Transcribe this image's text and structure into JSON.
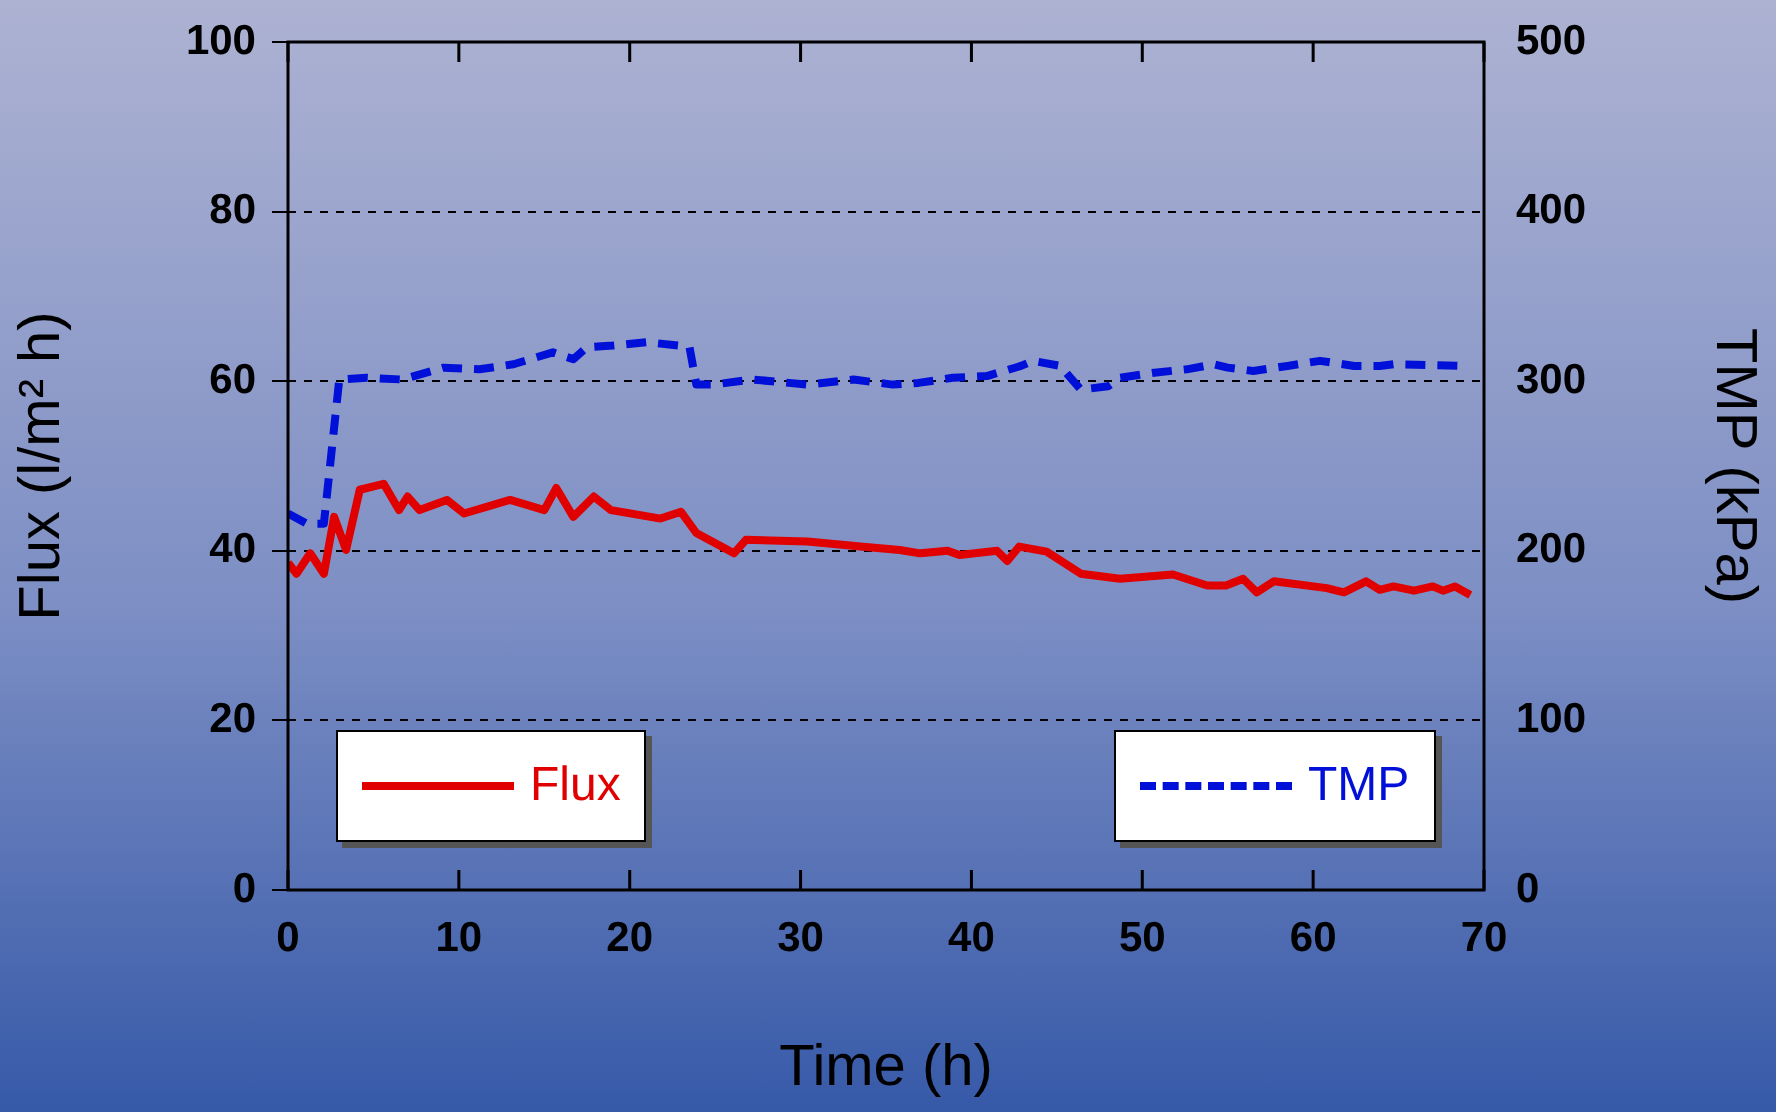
{
  "chart_data": {
    "type": "line",
    "xlabel": "Time (h)",
    "ylabel": "Flux (l/m² h)",
    "y2label": "TMP (kPa)",
    "xlim": [
      0,
      70
    ],
    "xticks": [
      0,
      10,
      20,
      30,
      40,
      50,
      60,
      70
    ],
    "ylim": [
      0,
      100
    ],
    "yticks": [
      0,
      20,
      40,
      60,
      80,
      100
    ],
    "y2lim": [
      0,
      500
    ],
    "y2ticks": [
      0,
      100,
      200,
      300,
      400,
      500
    ],
    "grid": "y",
    "legend": "bottom",
    "marker": "none",
    "series": [
      {
        "name": "Flux",
        "color": "#e00000",
        "line_style": "solid",
        "x": [
          0,
          0.5,
          1.3,
          2.1,
          2.7,
          3.4,
          4.2,
          5.6,
          6.5,
          7.0,
          7.7,
          9.3,
          10.3,
          13.0,
          15.0,
          15.7,
          16.7,
          17.9,
          18.9,
          21.8,
          23.0,
          23.9,
          26.1,
          26.8,
          30.4,
          33.5,
          35.8,
          37.0,
          38.6,
          39.3,
          41.5,
          42.1,
          42.8,
          44.4,
          46.4,
          48.7,
          51.8,
          53.8,
          54.9,
          55.9,
          56.7,
          57.7,
          60.8,
          61.8,
          63.1,
          63.9,
          64.7,
          65.9,
          67.0,
          67.6,
          68.3,
          69.2
        ],
        "values": [
          38.6,
          37.3,
          39.7,
          37.3,
          44,
          40.1,
          47.2,
          47.9,
          44.8,
          46.4,
          44.8,
          46,
          44.4,
          46,
          44.8,
          47.4,
          44,
          46.4,
          44.8,
          43.8,
          44.6,
          42.1,
          39.7,
          41.3,
          41.1,
          40.5,
          40.1,
          39.7,
          40,
          39.5,
          40,
          38.8,
          40.5,
          39.9,
          37.3,
          36.7,
          37.2,
          35.9,
          35.9,
          36.7,
          35.1,
          36.4,
          35.6,
          35.1,
          36.4,
          35.4,
          35.8,
          35.3,
          35.8,
          35.3,
          35.8,
          34.8
        ]
      },
      {
        "name": "TMP",
        "color": "#0010d8",
        "line_style": "dashed",
        "axis": "y2",
        "x": [
          0,
          1.1,
          2.1,
          3.0,
          4.6,
          6.7,
          9.1,
          11.2,
          13.2,
          15.5,
          16.7,
          17.5,
          19.0,
          21.0,
          22.9,
          23.5,
          23.9,
          24.9,
          27.2,
          30.4,
          33.1,
          35.4,
          36.9,
          38.9,
          40.9,
          42.9,
          43.6,
          45.2,
          46.4,
          48.0,
          48.7,
          50.7,
          52.6,
          54.2,
          55.0,
          56.5,
          58.5,
          60.4,
          62.4,
          63.9,
          64.7,
          68.6
        ],
        "values": [
          222,
          216,
          216,
          301,
          302,
          301,
          308,
          307,
          310,
          317,
          313,
          320,
          321,
          323,
          321,
          320,
          298,
          298,
          301,
          298,
          301,
          298,
          299,
          302,
          303,
          309,
          312,
          309,
          295,
          297,
          302,
          305,
          307,
          310,
          308,
          306,
          309,
          312,
          309,
          309,
          310,
          309
        ]
      }
    ]
  }
}
